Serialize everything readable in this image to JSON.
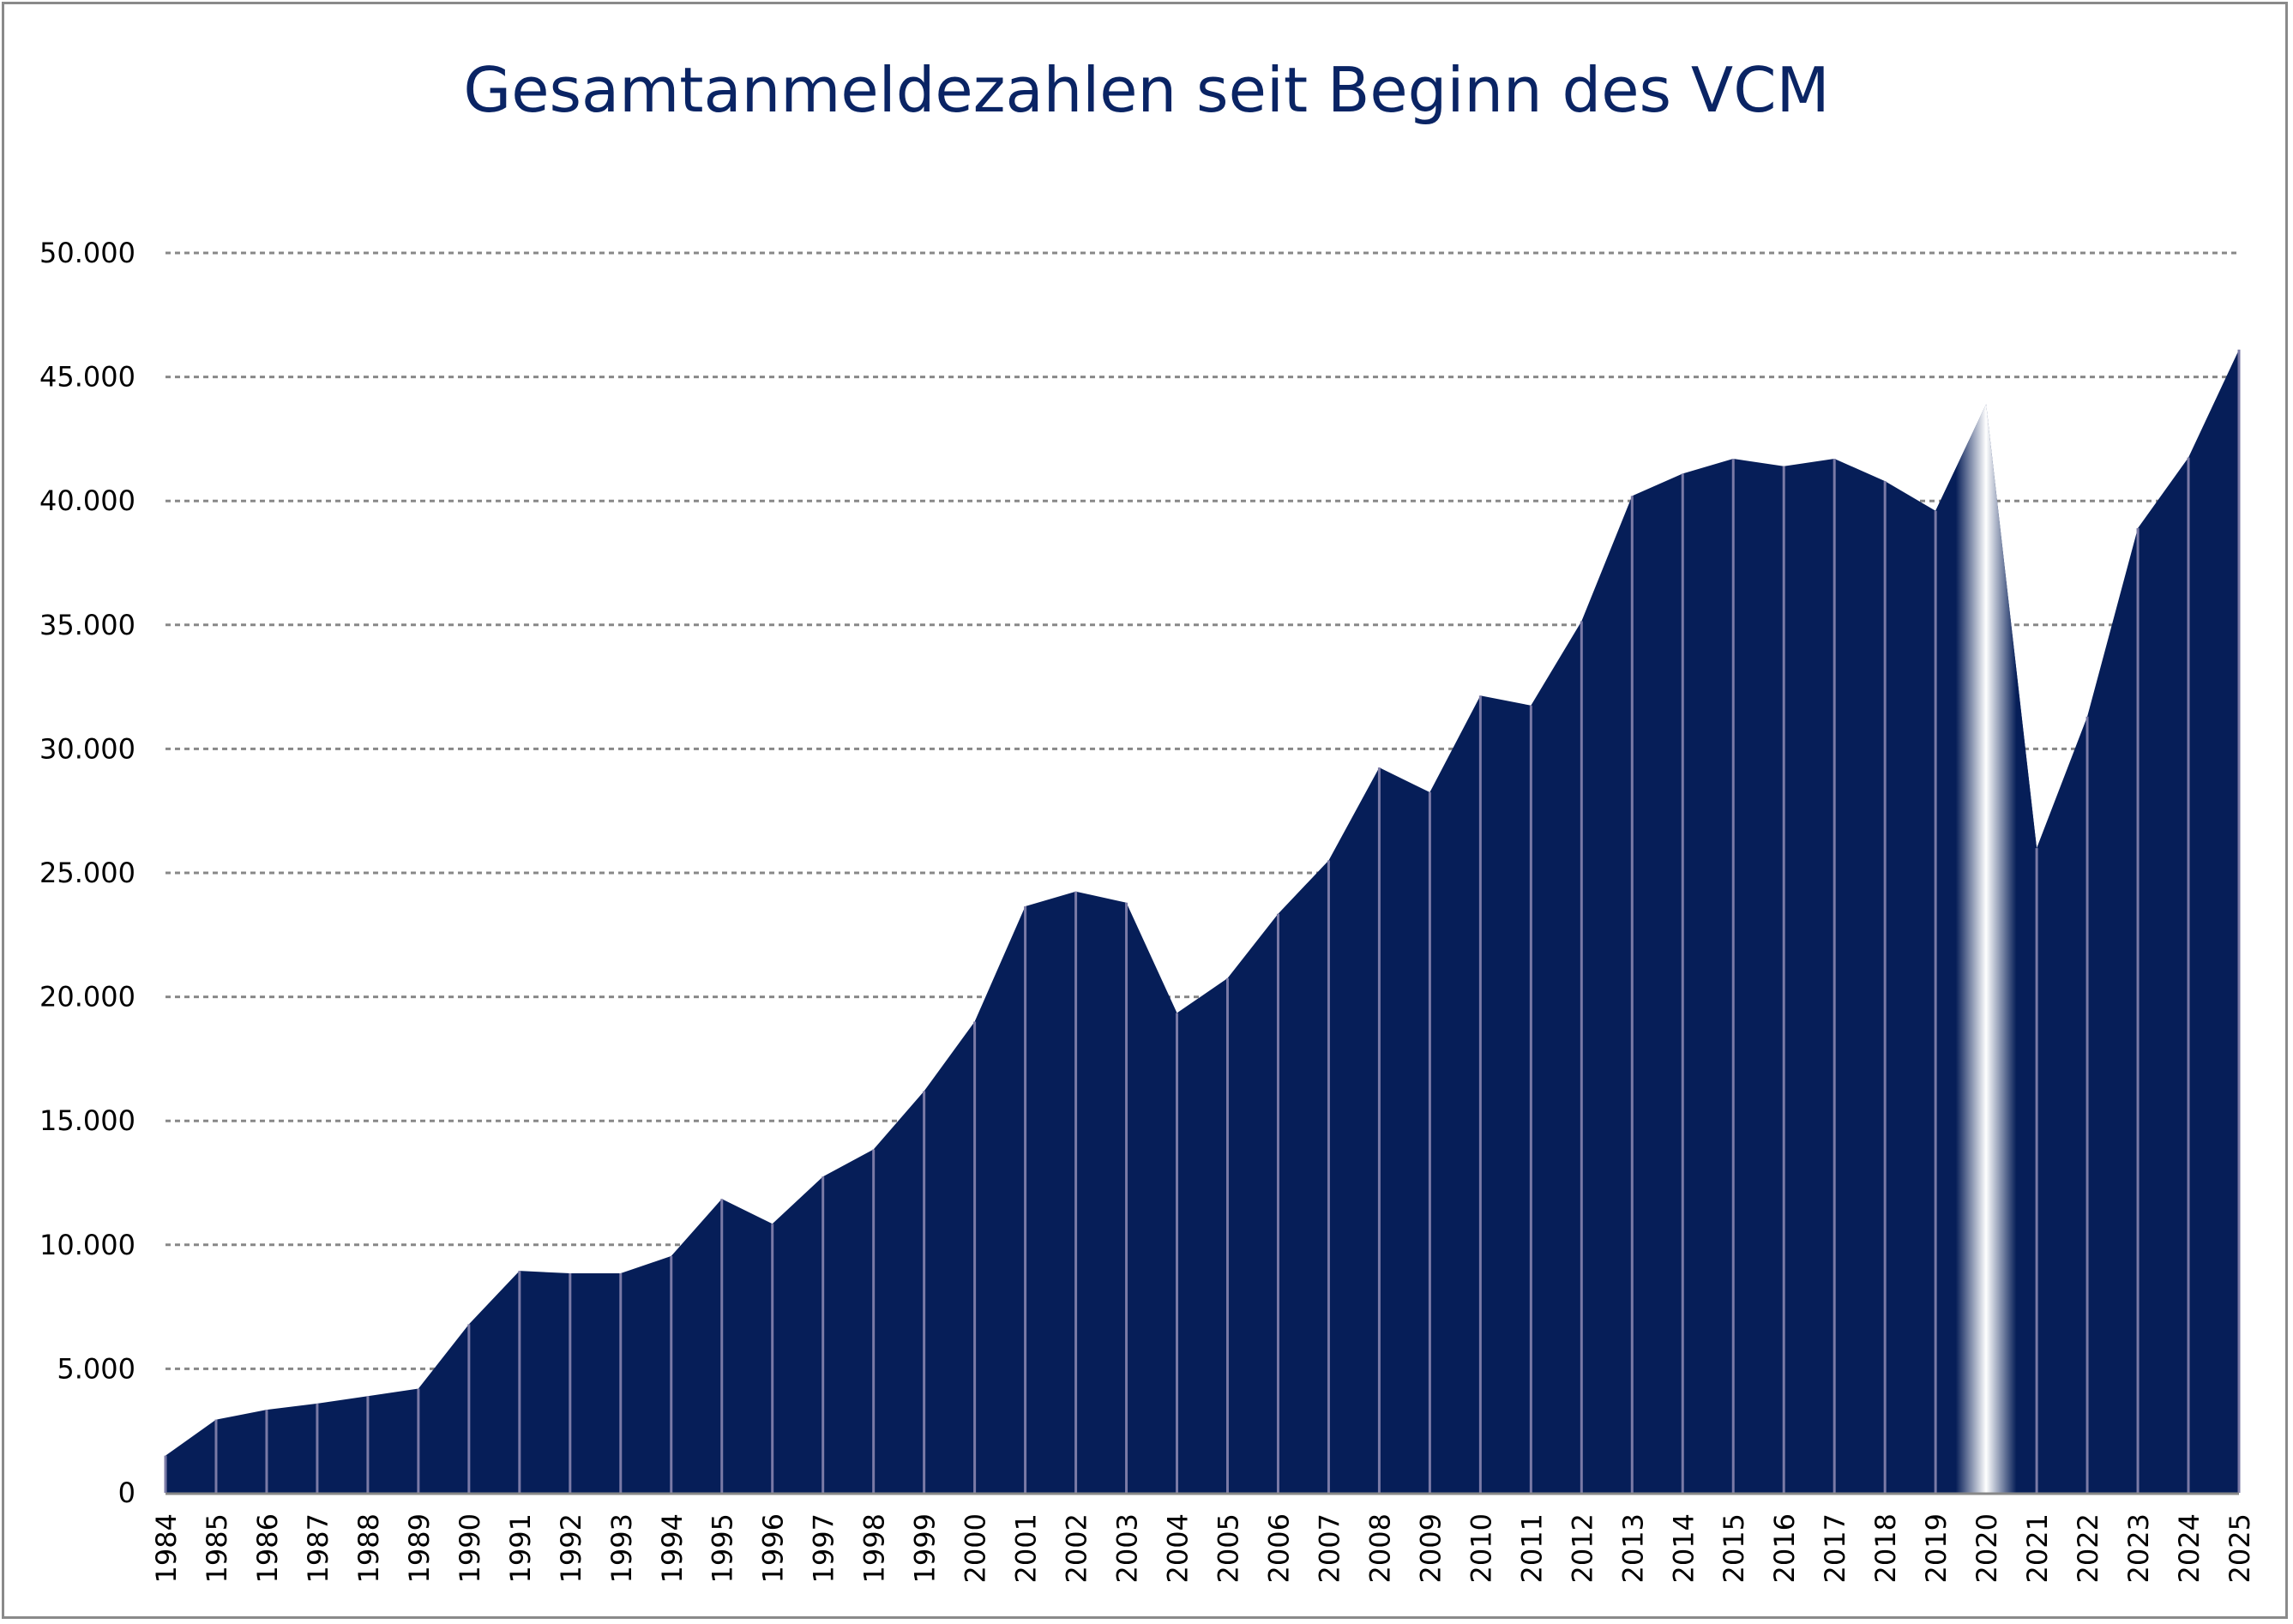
{
  "chart_data": {
    "type": "area",
    "title": "Gesamtanmeldezahlen seit Beginn des VCM",
    "xlabel": "",
    "ylabel": "",
    "ylim": [
      0,
      50000
    ],
    "grid": true,
    "y_ticks": [
      "0",
      "5.000",
      "10.000",
      "15.000",
      "20.000",
      "25.000",
      "30.000",
      "35.000",
      "40.000",
      "45.000",
      "50.000"
    ],
    "y_tick_values": [
      0,
      5000,
      10000,
      15000,
      20000,
      25000,
      30000,
      35000,
      40000,
      45000,
      50000
    ],
    "categories": [
      "1984",
      "1985",
      "1986",
      "1987",
      "1988",
      "1989",
      "1990",
      "1991",
      "1992",
      "1993",
      "1994",
      "1995",
      "1996",
      "1997",
      "1998",
      "1999",
      "2000",
      "2001",
      "2002",
      "2003",
      "2004",
      "2005",
      "2006",
      "2007",
      "2008",
      "2009",
      "2010",
      "2011",
      "2012",
      "2013",
      "2014",
      "2015",
      "2016",
      "2017",
      "2018",
      "2019",
      "2020",
      "2021",
      "2022",
      "2023",
      "2024",
      "2025"
    ],
    "values": [
      1500,
      2950,
      3350,
      3600,
      3900,
      4200,
      6800,
      8950,
      8850,
      8850,
      9550,
      11850,
      10850,
      12750,
      13850,
      16200,
      19000,
      23650,
      24250,
      23800,
      19350,
      20750,
      23350,
      25500,
      29250,
      28250,
      32150,
      31750,
      35150,
      40200,
      41100,
      41700,
      41400,
      41700,
      40800,
      39600,
      43900,
      26000,
      31300,
      38900,
      41750,
      46100
    ],
    "highlight_category": "2020",
    "colors": {
      "fill": "#061e58",
      "divider": "#7a7aa6",
      "grid": "#888888",
      "title": "#0a2464",
      "highlight_label": "#b4b4b4"
    }
  }
}
